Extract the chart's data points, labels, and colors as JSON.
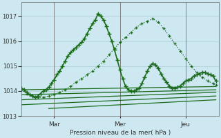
{
  "xlabel": "Pression niveau de la mer( hPa )",
  "bg_color": "#cde8f0",
  "grid_color": "#b0cdd5",
  "ylim": [
    1013.0,
    1017.55
  ],
  "yticks": [
    1013,
    1014,
    1015,
    1016,
    1017
  ],
  "xtick_labels": [
    "Mar",
    "Mer",
    "Jeu"
  ],
  "xtick_positions": [
    12,
    36,
    60
  ],
  "vline_positions": [
    12,
    36,
    60
  ],
  "xlim": [
    0,
    72
  ],
  "series": [
    {
      "x": [
        0,
        1,
        2,
        3,
        4,
        5,
        6,
        7,
        8,
        9,
        10,
        11,
        12,
        13,
        14,
        15,
        16,
        17,
        18,
        19,
        20,
        21,
        22,
        23,
        24,
        25,
        26,
        27,
        28,
        29,
        30,
        31,
        32,
        33,
        34,
        35,
        36,
        37,
        38,
        39,
        40,
        41,
        42,
        43,
        44,
        45,
        46,
        47,
        48,
        49,
        50,
        51,
        52,
        53,
        54,
        55,
        56,
        57,
        58,
        59,
        60,
        61,
        62,
        63,
        64,
        65,
        66,
        67,
        68,
        69,
        70,
        71
      ],
      "y": [
        1014.1,
        1014.05,
        1013.95,
        1013.85,
        1013.8,
        1013.75,
        1013.8,
        1013.9,
        1014.0,
        1014.05,
        1014.15,
        1014.3,
        1014.45,
        1014.65,
        1014.8,
        1015.0,
        1015.2,
        1015.4,
        1015.55,
        1015.65,
        1015.75,
        1015.85,
        1015.95,
        1016.1,
        1016.3,
        1016.5,
        1016.7,
        1016.85,
        1017.1,
        1017.0,
        1016.85,
        1016.6,
        1016.3,
        1016.0,
        1015.65,
        1015.25,
        1014.85,
        1014.5,
        1014.2,
        1014.05,
        1014.0,
        1014.0,
        1014.05,
        1014.1,
        1014.3,
        1014.55,
        1014.8,
        1015.0,
        1015.1,
        1015.05,
        1014.9,
        1014.7,
        1014.5,
        1014.35,
        1014.2,
        1014.1,
        1014.1,
        1014.15,
        1014.2,
        1014.3,
        1014.4,
        1014.45,
        1014.5,
        1014.6,
        1014.65,
        1014.7,
        1014.75,
        1014.75,
        1014.7,
        1014.65,
        1014.6,
        1014.4
      ],
      "marker": "+",
      "markersize": 4,
      "linewidth": 1.2,
      "color": "#1a6b1a",
      "zorder": 5,
      "linestyle": "solid"
    },
    {
      "x": [
        0,
        2,
        4,
        6,
        8,
        10,
        12,
        14,
        16,
        18,
        20,
        22,
        24,
        26,
        28,
        30,
        32,
        34,
        36,
        38,
        40,
        42,
        44,
        46,
        48,
        50,
        52,
        54,
        56,
        58,
        60,
        62,
        64,
        66,
        68,
        70,
        71
      ],
      "y": [
        1014.05,
        1013.9,
        1013.8,
        1013.75,
        1013.75,
        1013.8,
        1013.85,
        1013.95,
        1014.05,
        1014.2,
        1014.35,
        1014.5,
        1014.65,
        1014.8,
        1015.0,
        1015.2,
        1015.45,
        1015.7,
        1015.95,
        1016.15,
        1016.35,
        1016.55,
        1016.7,
        1016.8,
        1016.9,
        1016.75,
        1016.5,
        1016.2,
        1015.9,
        1015.6,
        1015.3,
        1015.0,
        1014.75,
        1014.55,
        1014.4,
        1014.3,
        1014.25
      ],
      "marker": "+",
      "markersize": 3.5,
      "linewidth": 0.9,
      "color": "#1a6b1a",
      "zorder": 4,
      "linestyle": "dotted"
    },
    {
      "x": [
        0,
        71
      ],
      "y": [
        1014.05,
        1014.18
      ],
      "marker": null,
      "linewidth": 0.9,
      "color": "#1a6b1a",
      "zorder": 3,
      "linestyle": "solid"
    },
    {
      "x": [
        0,
        71
      ],
      "y": [
        1013.85,
        1014.05
      ],
      "marker": null,
      "linewidth": 0.9,
      "color": "#1a6b1a",
      "zorder": 3,
      "linestyle": "solid"
    },
    {
      "x": [
        0,
        71
      ],
      "y": [
        1013.65,
        1013.95
      ],
      "marker": null,
      "linewidth": 0.9,
      "color": "#1a6b1a",
      "zorder": 3,
      "linestyle": "solid"
    },
    {
      "x": [
        0,
        71
      ],
      "y": [
        1013.45,
        1013.8
      ],
      "marker": null,
      "linewidth": 0.9,
      "color": "#1a6b1a",
      "zorder": 3,
      "linestyle": "solid"
    },
    {
      "x": [
        10,
        71
      ],
      "y": [
        1013.3,
        1013.65
      ],
      "marker": null,
      "linewidth": 0.9,
      "color": "#1a6b1a",
      "zorder": 3,
      "linestyle": "solid"
    }
  ]
}
